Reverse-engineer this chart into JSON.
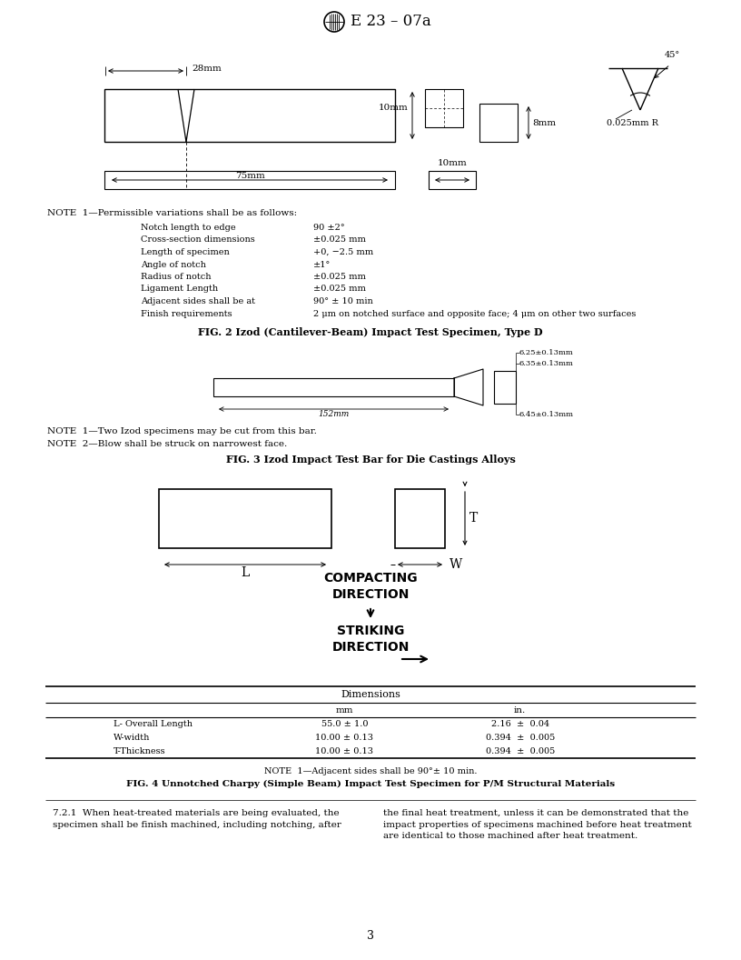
{
  "title": "E 23 – 07a",
  "background": "#ffffff",
  "text_color": "#000000",
  "fig2_caption": "FIG. 2 Izod (Cantilever-Beam) Impact Test Specimen, Type D",
  "fig3_caption": "FIG. 3 Izod Impact Test Bar for Die Castings Alloys",
  "fig4_caption": "FIG. 4 Unnotched Charpy (Simple Beam) Impact Test Specimen for P/M Structural Materials",
  "note1_fig2": "NOTE  1—Permissible variations shall be as follows:",
  "note_items": [
    [
      "Notch length to edge",
      "90 ±2°"
    ],
    [
      "Cross-section dimensions",
      "±0.025 mm"
    ],
    [
      "Length of specimen",
      "+0, −2.5 mm"
    ],
    [
      "Angle of notch",
      "±1°"
    ],
    [
      "Radius of notch",
      "±0.025 mm"
    ],
    [
      "Ligament Length",
      "±0.025 mm"
    ],
    [
      "Adjacent sides shall be at",
      "90° ± 10 min"
    ],
    [
      "Finish requirements",
      "2 μm on notched surface and opposite face; 4 μm on other two surfaces"
    ]
  ],
  "note1_fig3_line1": "NOTE  1—Two Izod specimens may be cut from this bar.",
  "note1_fig3_line2": "NOTE  2—Blow shall be struck on narrowest face.",
  "note1_fig4": "NOTE  1—Adjacent sides shall be 90°± 10 min.",
  "table_rows": [
    [
      "L- Overall Length",
      "55.0 ± 1.0",
      "2.16  ±  0.04"
    ],
    [
      "W-width",
      "10.00 ± 0.13",
      "0.394  ±  0.005"
    ],
    [
      "T-Thickness",
      "10.00 ± 0.13",
      "0.394  ±  0.005"
    ]
  ],
  "bottom_text_left": "7.2.1  When heat-treated materials are being evaluated, the\nspecimen shall be finish machined, including notching, after",
  "bottom_text_right": "the final heat treatment, unless it can be demonstrated that the\nimpact properties of specimens machined before heat treatment\nare identical to those machined after heat treatment.",
  "page_number": "3",
  "compacting_direction": "COMPACTING\nDIRECTION",
  "striking_direction": "STRIKING\nDIRECTION"
}
